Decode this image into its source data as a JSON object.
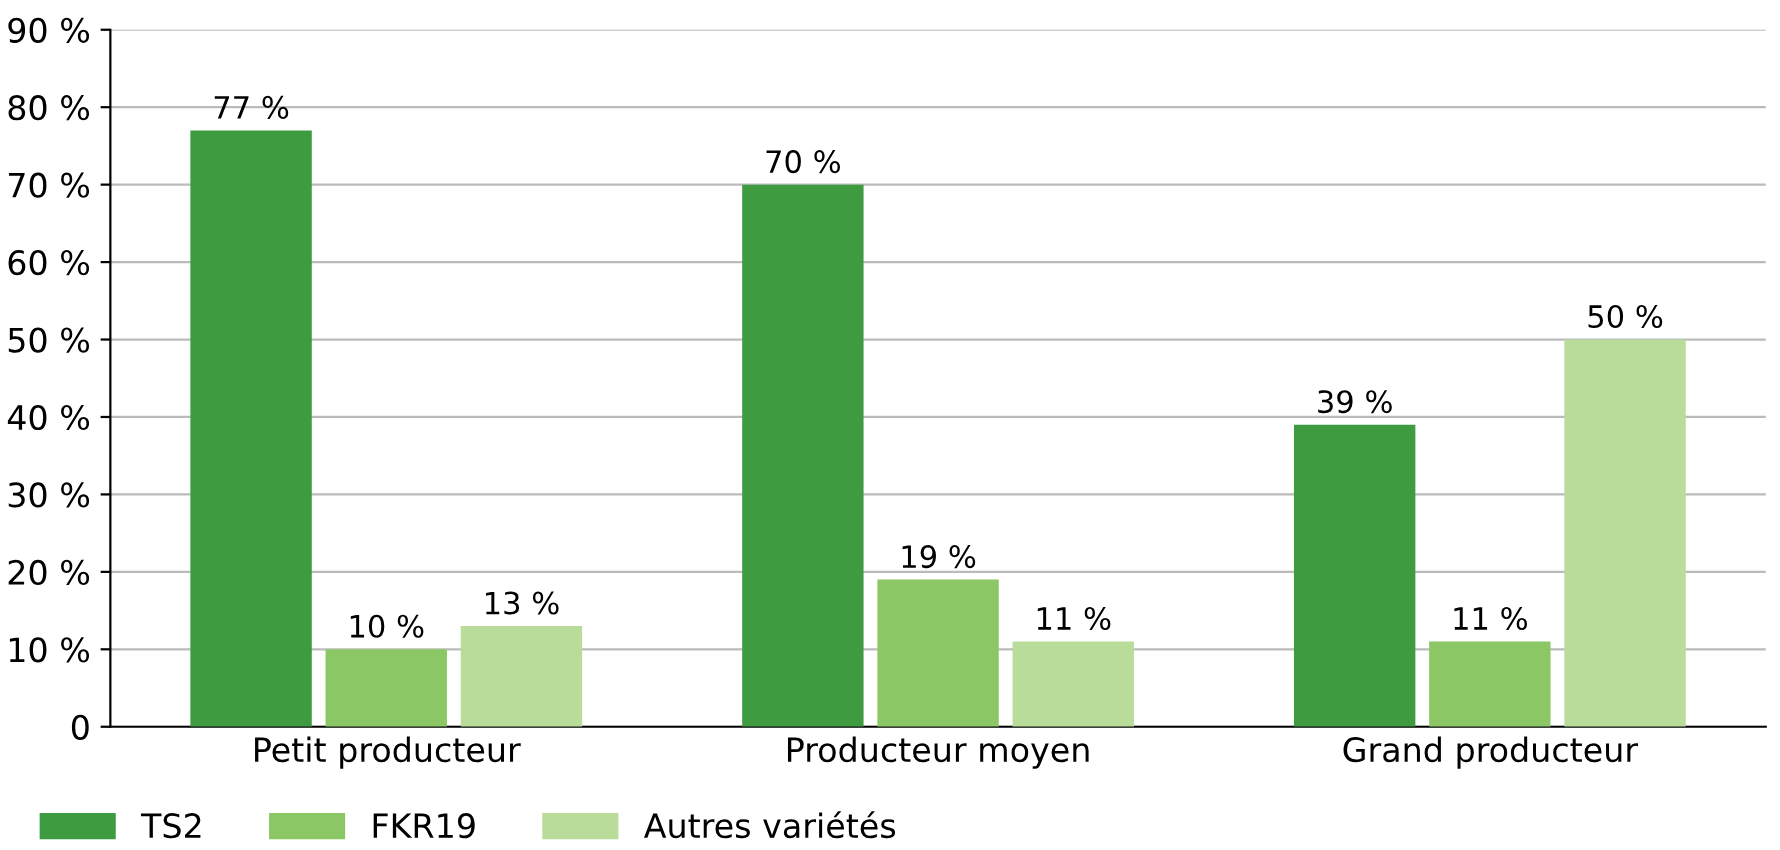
{
  "chart_data": {
    "type": "bar",
    "categories": [
      "Petit producteur",
      "Producteur moyen",
      "Grand producteur"
    ],
    "series": [
      {
        "name": "TS2",
        "color": "#3f9b3f",
        "values": [
          77,
          70,
          39
        ],
        "value_labels": [
          "77 %",
          "70 %",
          "39 %"
        ]
      },
      {
        "name": "FKR19",
        "color": "#8bc865",
        "values": [
          10,
          19,
          11
        ],
        "value_labels": [
          "10 %",
          "19 %",
          "11 %"
        ]
      },
      {
        "name": "Autres variétés",
        "color": "#b9dc9b",
        "values": [
          13,
          11,
          50
        ],
        "value_labels": [
          "13 %",
          "11 %",
          "50 %"
        ]
      }
    ],
    "ylim": [
      0,
      90
    ],
    "yticks": [
      0,
      {
        "value": 10,
        "label": "10 %"
      },
      {
        "value": 20,
        "label": "20 %"
      },
      {
        "value": 30,
        "label": "30 %"
      },
      {
        "value": 40,
        "label": "40 %"
      },
      {
        "value": 50,
        "label": "50 %"
      },
      {
        "value": 60,
        "label": "60 %"
      },
      {
        "value": 70,
        "label": "70 %"
      },
      {
        "value": 80,
        "label": "80 %"
      },
      {
        "value": 90,
        "label": "90 %"
      }
    ],
    "grid": "y",
    "legend": "bottom left"
  }
}
